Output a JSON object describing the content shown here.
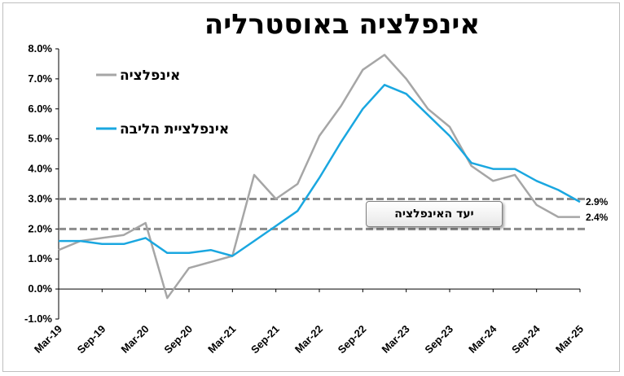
{
  "chart_data": {
    "type": "line",
    "title": "אינפלציה באוסטרליה",
    "xlabel": "",
    "ylabel": "",
    "ylim": [
      -1.0,
      8.0
    ],
    "y_ticks": [
      "-1.0%",
      "0.0%",
      "1.0%",
      "2.0%",
      "3.0%",
      "4.0%",
      "5.0%",
      "6.0%",
      "7.0%",
      "8.0%"
    ],
    "x_ticks": [
      "Mar-19",
      "Sep-19",
      "Mar-20",
      "Sep-20",
      "Mar-21",
      "Sep-21",
      "Mar-22",
      "Sep-22",
      "Mar-23",
      "Sep-23",
      "Mar-24",
      "Sep-24",
      "Mar-25"
    ],
    "x": [
      "Mar-19",
      "Jun-19",
      "Sep-19",
      "Dec-19",
      "Mar-20",
      "Jun-20",
      "Sep-20",
      "Dec-20",
      "Mar-21",
      "Jun-21",
      "Sep-21",
      "Dec-21",
      "Mar-22",
      "Jun-22",
      "Sep-22",
      "Dec-22",
      "Mar-23",
      "Jun-23",
      "Sep-23",
      "Dec-23",
      "Mar-24",
      "Jun-24",
      "Sep-24",
      "Dec-24",
      "Mar-25"
    ],
    "grid": false,
    "legend_position": "top-left",
    "series": [
      {
        "name": "אינפלציה",
        "color": "#a6a6a6",
        "values": [
          1.3,
          1.6,
          1.7,
          1.8,
          2.2,
          -0.3,
          0.7,
          0.9,
          1.1,
          3.8,
          3.0,
          3.5,
          5.1,
          6.1,
          7.3,
          7.8,
          7.0,
          6.0,
          5.4,
          4.1,
          3.6,
          3.8,
          2.8,
          2.4,
          2.4
        ]
      },
      {
        "name": "אינפלציית הליבה",
        "color": "#1aa7e0",
        "values": [
          1.6,
          1.6,
          1.5,
          1.5,
          1.7,
          1.2,
          1.2,
          1.3,
          1.1,
          1.6,
          2.1,
          2.6,
          3.7,
          4.9,
          6.0,
          6.8,
          6.5,
          5.8,
          5.1,
          4.2,
          4.0,
          4.0,
          3.6,
          3.3,
          2.9
        ]
      }
    ],
    "end_labels": [
      {
        "series": 1,
        "text": "2.9%"
      },
      {
        "series": 0,
        "text": "2.4%"
      }
    ],
    "target_band": {
      "lower": 2.0,
      "upper": 3.0,
      "label": "יעד האינפלציה"
    }
  }
}
